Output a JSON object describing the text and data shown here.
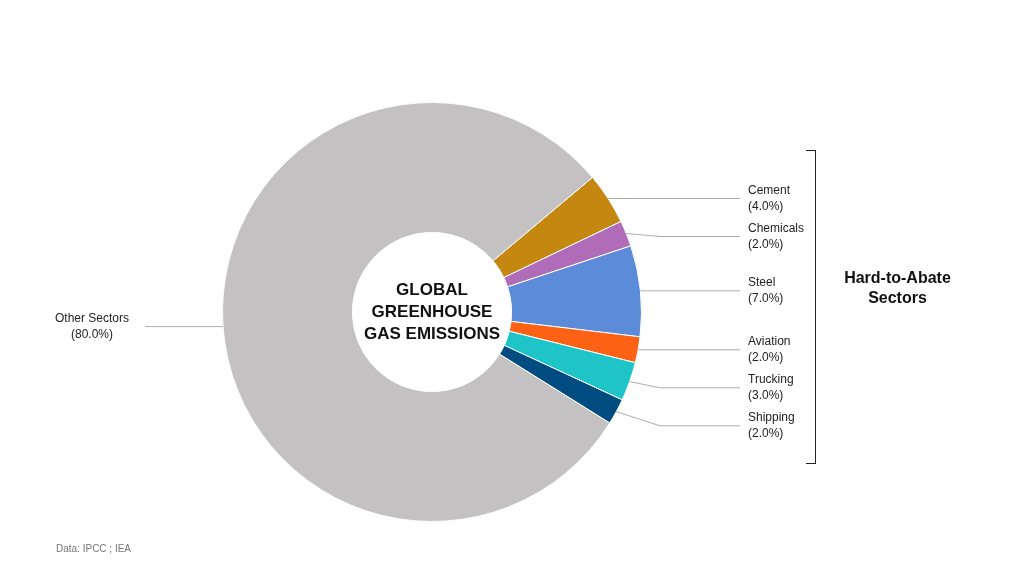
{
  "chart_data": {
    "type": "donut",
    "title": "GLOBAL GREENHOUSE GAS EMISSIONS",
    "categories": [
      "Cement",
      "Chemicals",
      "Steel",
      "Aviation",
      "Trucking",
      "Shipping",
      "Other Sectors"
    ],
    "values": [
      4,
      2,
      7,
      2,
      3,
      2,
      80
    ],
    "value_labels": [
      "(4.0%)",
      "(2.0%)",
      "(7.0%)",
      "(2.0%)",
      "(3.0%)",
      "(2.0%)",
      "(80.0%)"
    ],
    "colors": [
      "#c4870f",
      "#b06bb9",
      "#5b8bd9",
      "#fd6114",
      "#1fc4c9",
      "#004b80",
      "#c3c1c2"
    ],
    "legend": false,
    "annotations": [
      "Hard-to-Abate Sectors",
      "Data: IPCC ; IEA"
    ]
  }
}
